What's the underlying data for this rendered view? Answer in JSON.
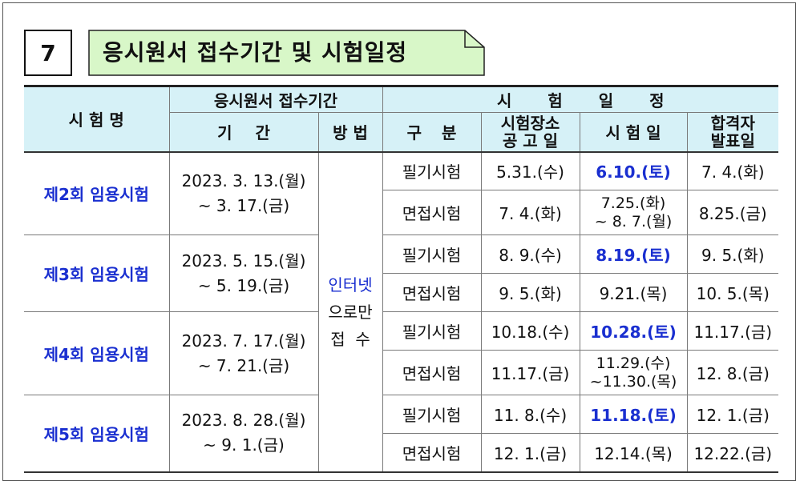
{
  "section": {
    "number": "7",
    "title": "응시원서 접수기간 및 시험일정"
  },
  "header": {
    "exam_name": "시 험 명",
    "application_period": "응시원서 접수기간",
    "exam_schedule": "시 험 일 정",
    "period": "기 간",
    "method": "방 법",
    "type": "구 분",
    "venue_notice_line1": "시험장소",
    "venue_notice_line2": "공 고 일",
    "exam_date": "시 험 일",
    "result_line1": "합격자",
    "result_line2": "발표일"
  },
  "method_lines": [
    "인터넷",
    "으로만",
    "접  수"
  ],
  "exams": [
    {
      "name": "제2회 임용시험",
      "period_line1": "2023. 3. 13.(월)",
      "period_line2": "~ 3. 17.(금)",
      "rows": [
        {
          "type": "필기시험",
          "notice": "5.31.(수)",
          "date": "6.10.(토)",
          "result": "7. 4.(화)"
        },
        {
          "type": "면접시험",
          "notice": "7. 4.(화)",
          "date_line1": "7.25.(화)",
          "date_line2": "~ 8. 7.(월)",
          "result": "8.25.(금)"
        }
      ]
    },
    {
      "name": "제3회 임용시험",
      "period_line1": "2023. 5. 15.(월)",
      "period_line2": "~ 5. 19.(금)",
      "rows": [
        {
          "type": "필기시험",
          "notice": "8. 9.(수)",
          "date": "8.19.(토)",
          "result": "9. 5.(화)"
        },
        {
          "type": "면접시험",
          "notice": "9. 5.(화)",
          "date": "9.21.(목)",
          "result": "10. 5.(목)"
        }
      ]
    },
    {
      "name": "제4회 임용시험",
      "period_line1": "2023. 7. 17.(월)",
      "period_line2": "~ 7. 21.(금)",
      "rows": [
        {
          "type": "필기시험",
          "notice": "10.18.(수)",
          "date": "10.28.(토)",
          "result": "11.17.(금)"
        },
        {
          "type": "면접시험",
          "notice": "11.17.(금)",
          "date_line1": "11.29.(수)",
          "date_line2": "~11.30.(목)",
          "result": "12. 8.(금)"
        }
      ]
    },
    {
      "name": "제5회 임용시험",
      "period_line1": "2023. 8. 28.(월)",
      "period_line2": "~ 9. 1.(금)",
      "rows": [
        {
          "type": "필기시험",
          "notice": "11. 8.(수)",
          "date": "11.18.(토)",
          "result": "12. 1.(금)"
        },
        {
          "type": "면접시험",
          "notice": "12. 1.(금)",
          "date": "12.14.(목)",
          "result": "12.22.(금)"
        }
      ]
    }
  ],
  "colors": {
    "header_bg": "#d6f1f7",
    "title_bg": "#d8f7c8",
    "accent_blue": "#1a2fd0"
  }
}
